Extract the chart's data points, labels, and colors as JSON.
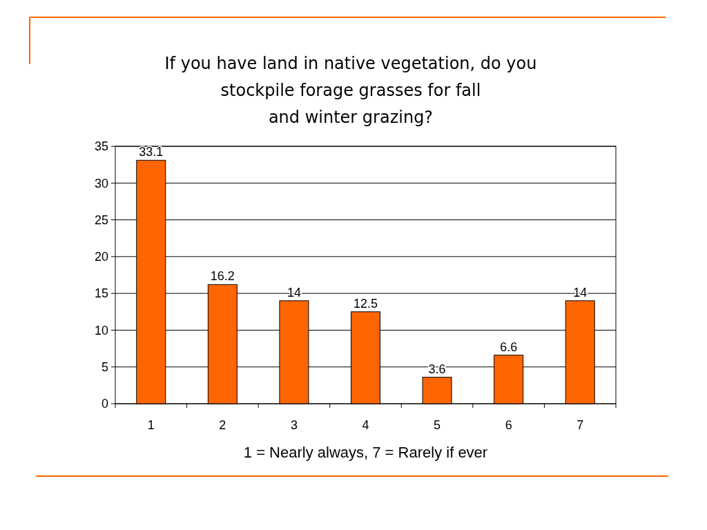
{
  "chart_data": {
    "type": "bar",
    "title": "If you have land in native vegetation, do you\nstockpile forage grasses for fall\nand winter grazing?",
    "xlabel": "1 = Nearly always, 7 = Rarely if ever",
    "categories": [
      "1",
      "2",
      "3",
      "4",
      "5",
      "6",
      "7"
    ],
    "values": [
      33.1,
      16.2,
      14,
      12.5,
      3.6,
      6.6,
      14
    ],
    "color": "#ff6600",
    "ylim": [
      0,
      35
    ],
    "yticks": [
      0,
      5,
      10,
      15,
      20,
      25,
      30,
      35
    ],
    "grid": "y",
    "data_labels": true
  }
}
